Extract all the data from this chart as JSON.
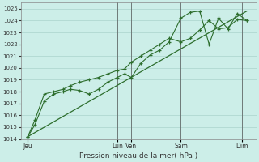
{
  "xlabel": "Pression niveau de la mer( hPa )",
  "background_color": "#cceee8",
  "grid_color": "#aad4cc",
  "line_color": "#2d6e2d",
  "ylim": [
    1014,
    1025.5
  ],
  "yticks": [
    1014,
    1015,
    1016,
    1017,
    1018,
    1019,
    1020,
    1021,
    1022,
    1023,
    1024,
    1025
  ],
  "xlim": [
    0,
    10.0
  ],
  "day_labels": [
    "Jeu",
    "Lun",
    "Ven",
    "Sam",
    "Dim"
  ],
  "day_positions": [
    0.3,
    4.1,
    4.7,
    6.8,
    9.4
  ],
  "vline_positions": [
    0.3,
    4.1,
    4.7,
    6.8,
    9.4
  ],
  "series1_x": [
    0.3,
    0.6,
    1.0,
    1.4,
    1.8,
    2.1,
    2.5,
    2.9,
    3.3,
    3.7,
    4.1,
    4.4,
    4.7,
    5.1,
    5.5,
    5.9,
    6.3,
    6.8,
    7.2,
    7.6,
    8.0,
    8.4,
    8.8,
    9.2,
    9.6
  ],
  "series1_y": [
    1014.2,
    1015.2,
    1017.2,
    1017.8,
    1018.0,
    1018.2,
    1018.1,
    1017.8,
    1018.2,
    1018.8,
    1019.2,
    1019.5,
    1019.2,
    1020.4,
    1021.1,
    1021.5,
    1022.2,
    1024.2,
    1024.7,
    1024.8,
    1022.0,
    1024.2,
    1023.3,
    1024.6,
    1024.0
  ],
  "series2_x": [
    0.3,
    0.6,
    1.0,
    1.4,
    1.8,
    2.1,
    2.5,
    2.9,
    3.3,
    3.7,
    4.1,
    4.4,
    4.7,
    5.1,
    5.5,
    5.9,
    6.3,
    6.8,
    7.2,
    7.6,
    8.0,
    8.4,
    8.8,
    9.2,
    9.6
  ],
  "series2_y": [
    1014.2,
    1015.6,
    1017.8,
    1018.0,
    1018.2,
    1018.5,
    1018.8,
    1019.0,
    1019.2,
    1019.5,
    1019.8,
    1019.9,
    1020.5,
    1021.0,
    1021.5,
    1022.0,
    1022.5,
    1022.2,
    1022.5,
    1023.2,
    1024.0,
    1023.3,
    1023.4,
    1024.1,
    1024.0
  ],
  "series3_x": [
    0.3,
    9.6
  ],
  "series3_y": [
    1014.2,
    1024.8
  ]
}
